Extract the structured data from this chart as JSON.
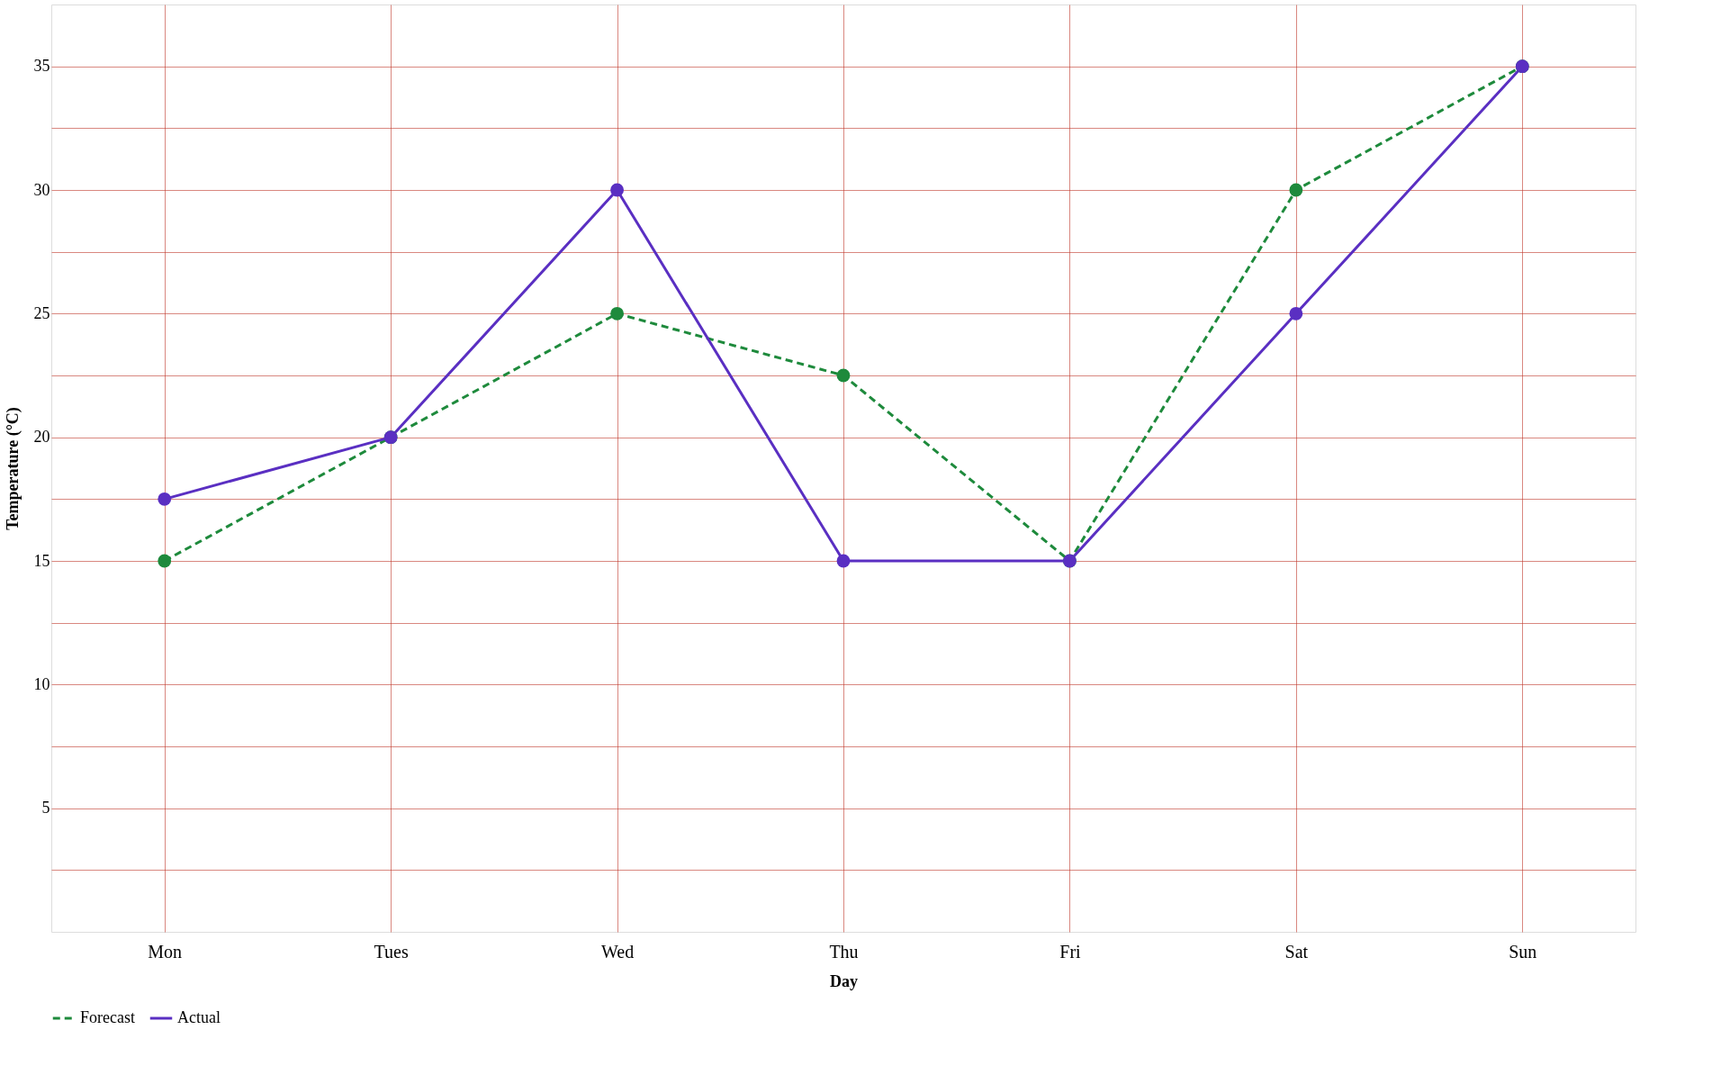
{
  "chart_data": {
    "type": "line",
    "xlabel": "Day",
    "ylabel": "Temperature (°C)",
    "categories": [
      "Mon",
      "Tues",
      "Wed",
      "Thu",
      "Fri",
      "Sat",
      "Sun"
    ],
    "series": [
      {
        "name": "Forecast",
        "color": "#1e8a3c",
        "line_style": "dashed",
        "values": [
          15,
          20,
          25,
          22.5,
          15,
          30,
          35
        ]
      },
      {
        "name": "Actual",
        "color": "#5a2fc2",
        "line_style": "solid",
        "values": [
          17.5,
          20,
          30,
          15,
          15,
          25,
          35
        ]
      }
    ],
    "ylim": [
      0,
      37.5
    ],
    "yticks": [
      {
        "value": 2.5,
        "label": null
      },
      5,
      {
        "value": 7.5,
        "label": null
      },
      10,
      {
        "value": 12.5,
        "label": null
      },
      15,
      {
        "value": 17.5,
        "label": null
      },
      20,
      {
        "value": 22.5,
        "label": null
      },
      25,
      {
        "value": 27.5,
        "label": null
      },
      30,
      {
        "value": 32.5,
        "label": null
      },
      35
    ],
    "grid": true,
    "legend": "bottom",
    "marker": "circle"
  }
}
